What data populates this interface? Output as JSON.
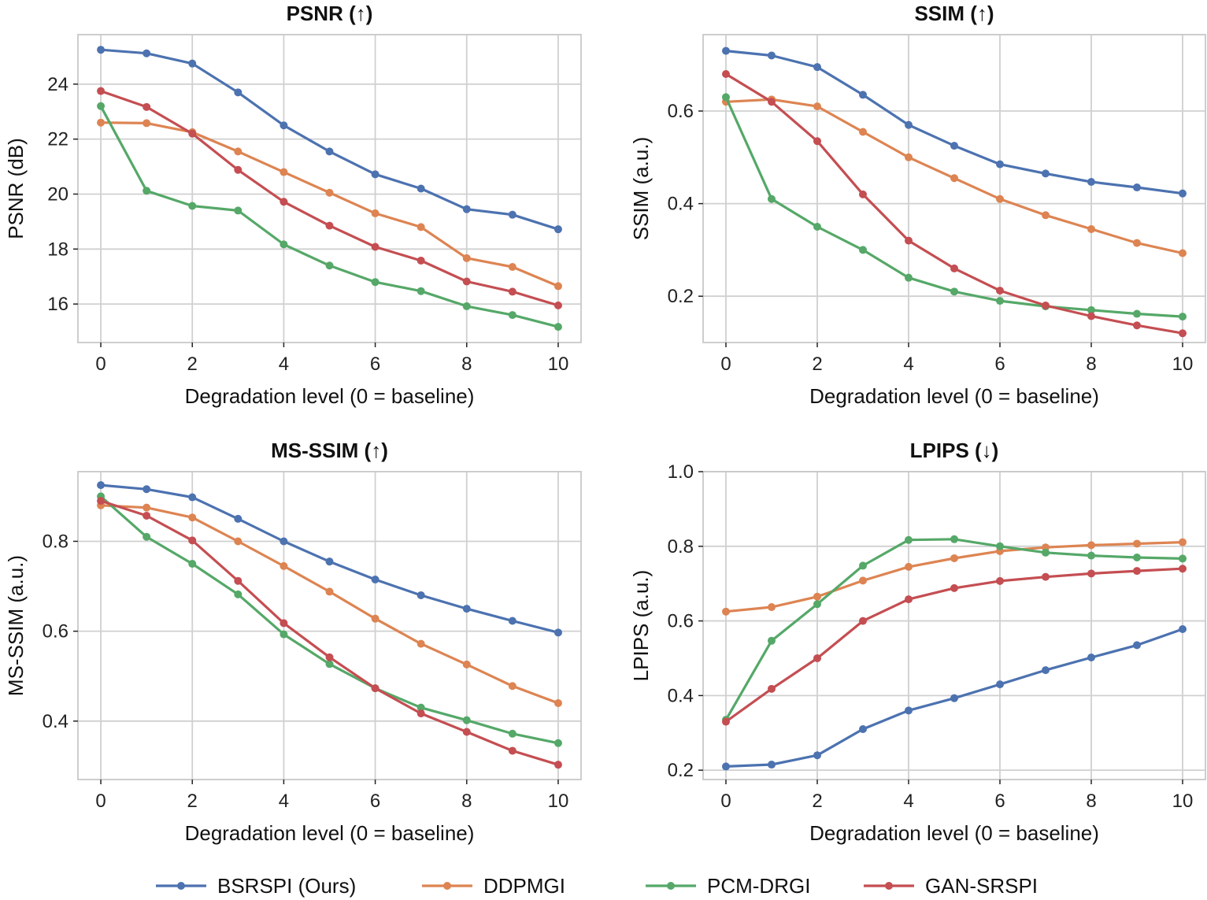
{
  "series_names": [
    "BSRSPI (Ours)",
    "DDPMGI",
    "PCM-DRGI",
    "GAN-SRSPI"
  ],
  "colors": [
    "#4c72b0",
    "#dd8452",
    "#55a868",
    "#c44e52"
  ],
  "chart_data": [
    {
      "type": "line",
      "title": "PSNR (↑)",
      "xlabel": "Degradation level (0 = baseline)",
      "ylabel": "PSNR (dB)",
      "x": [
        0,
        1,
        2,
        3,
        4,
        5,
        6,
        7,
        8,
        9,
        10
      ],
      "xlim": [
        -0.5,
        10.5
      ],
      "ylim": [
        14.6,
        25.8
      ],
      "xticks": [
        0,
        2,
        4,
        6,
        8,
        10
      ],
      "yticks": [
        16,
        18,
        20,
        22,
        24
      ],
      "tick_labels_x": [
        "0",
        "2",
        "4",
        "6",
        "8",
        "10"
      ],
      "tick_labels_y": [
        "16",
        "18",
        "20",
        "22",
        "24"
      ],
      "grid": true,
      "series": [
        {
          "name": "BSRSPI (Ours)",
          "values": [
            25.25,
            25.12,
            24.75,
            23.7,
            22.5,
            21.55,
            20.72,
            20.2,
            19.45,
            19.25,
            18.72
          ]
        },
        {
          "name": "DDPMGI",
          "values": [
            22.6,
            22.58,
            22.25,
            21.55,
            20.8,
            20.05,
            19.3,
            18.8,
            17.67,
            17.35,
            16.65
          ]
        },
        {
          "name": "PCM-DRGI",
          "values": [
            23.2,
            20.12,
            19.57,
            19.4,
            18.17,
            17.4,
            16.8,
            16.47,
            15.92,
            15.6,
            15.17
          ]
        },
        {
          "name": "GAN-SRSPI",
          "values": [
            23.75,
            23.17,
            22.2,
            20.88,
            19.72,
            18.85,
            18.08,
            17.58,
            16.82,
            16.45,
            15.95
          ]
        }
      ]
    },
    {
      "type": "line",
      "title": "SSIM (↑)",
      "xlabel": "Degradation level (0 = baseline)",
      "ylabel": "SSIM (a.u.)",
      "x": [
        0,
        1,
        2,
        3,
        4,
        5,
        6,
        7,
        8,
        9,
        10
      ],
      "xlim": [
        -0.5,
        10.5
      ],
      "ylim": [
        0.1,
        0.765
      ],
      "xticks": [
        0,
        2,
        4,
        6,
        8,
        10
      ],
      "yticks": [
        0.2,
        0.4,
        0.6
      ],
      "tick_labels_x": [
        "0",
        "2",
        "4",
        "6",
        "8",
        "10"
      ],
      "tick_labels_y": [
        "0.2",
        "0.4",
        "0.6"
      ],
      "grid": true,
      "series": [
        {
          "name": "BSRSPI (Ours)",
          "values": [
            0.73,
            0.72,
            0.695,
            0.635,
            0.57,
            0.525,
            0.485,
            0.465,
            0.447,
            0.435,
            0.422
          ]
        },
        {
          "name": "DDPMGI",
          "values": [
            0.62,
            0.625,
            0.61,
            0.555,
            0.5,
            0.455,
            0.41,
            0.375,
            0.345,
            0.315,
            0.293
          ]
        },
        {
          "name": "PCM-DRGI",
          "values": [
            0.63,
            0.41,
            0.35,
            0.3,
            0.24,
            0.21,
            0.19,
            0.178,
            0.17,
            0.162,
            0.156
          ]
        },
        {
          "name": "GAN-SRSPI",
          "values": [
            0.68,
            0.62,
            0.535,
            0.42,
            0.32,
            0.26,
            0.212,
            0.18,
            0.157,
            0.137,
            0.12
          ]
        }
      ]
    },
    {
      "type": "line",
      "title": "MS-SSIM (↑)",
      "xlabel": "Degradation level (0 = baseline)",
      "ylabel": "MS-SSIM (a.u.)",
      "x": [
        0,
        1,
        2,
        3,
        4,
        5,
        6,
        7,
        8,
        9,
        10
      ],
      "xlim": [
        -0.5,
        10.5
      ],
      "ylim": [
        0.27,
        0.955
      ],
      "xticks": [
        0,
        2,
        4,
        6,
        8,
        10
      ],
      "yticks": [
        0.4,
        0.6,
        0.8
      ],
      "tick_labels_x": [
        "0",
        "2",
        "4",
        "6",
        "8",
        "10"
      ],
      "tick_labels_y": [
        "0.4",
        "0.6",
        "0.8"
      ],
      "grid": true,
      "series": [
        {
          "name": "BSRSPI (Ours)",
          "values": [
            0.925,
            0.916,
            0.898,
            0.85,
            0.8,
            0.755,
            0.715,
            0.68,
            0.65,
            0.623,
            0.597
          ]
        },
        {
          "name": "DDPMGI",
          "values": [
            0.88,
            0.875,
            0.853,
            0.8,
            0.745,
            0.688,
            0.628,
            0.572,
            0.526,
            0.478,
            0.44
          ]
        },
        {
          "name": "PCM-DRGI",
          "values": [
            0.9,
            0.81,
            0.75,
            0.682,
            0.593,
            0.527,
            0.473,
            0.43,
            0.402,
            0.372,
            0.351
          ]
        },
        {
          "name": "GAN-SRSPI",
          "values": [
            0.89,
            0.857,
            0.802,
            0.712,
            0.618,
            0.542,
            0.473,
            0.417,
            0.376,
            0.334,
            0.303
          ]
        }
      ]
    },
    {
      "type": "line",
      "title": "LPIPS (↓)",
      "xlabel": "Degradation level (0 = baseline)",
      "ylabel": "LPIPS (a.u.)",
      "x": [
        0,
        1,
        2,
        3,
        4,
        5,
        6,
        7,
        8,
        9,
        10
      ],
      "xlim": [
        -0.5,
        10.5
      ],
      "ylim": [
        0.175,
        1.0
      ],
      "xticks": [
        0,
        2,
        4,
        6,
        8,
        10
      ],
      "yticks": [
        0.2,
        0.4,
        0.6,
        0.8,
        1.0
      ],
      "tick_labels_x": [
        "0",
        "2",
        "4",
        "6",
        "8",
        "10"
      ],
      "tick_labels_y": [
        "0.2",
        "0.4",
        "0.6",
        "0.8",
        "1.0"
      ],
      "grid": true,
      "series": [
        {
          "name": "BSRSPI (Ours)",
          "values": [
            0.21,
            0.215,
            0.24,
            0.31,
            0.36,
            0.393,
            0.43,
            0.468,
            0.502,
            0.535,
            0.578
          ]
        },
        {
          "name": "DDPMGI",
          "values": [
            0.625,
            0.637,
            0.665,
            0.708,
            0.745,
            0.768,
            0.787,
            0.797,
            0.803,
            0.807,
            0.811
          ]
        },
        {
          "name": "PCM-DRGI",
          "values": [
            0.335,
            0.547,
            0.645,
            0.748,
            0.817,
            0.819,
            0.8,
            0.783,
            0.775,
            0.77,
            0.767
          ]
        },
        {
          "name": "GAN-SRSPI",
          "values": [
            0.33,
            0.418,
            0.5,
            0.6,
            0.658,
            0.688,
            0.707,
            0.718,
            0.727,
            0.734,
            0.74
          ]
        }
      ]
    }
  ]
}
